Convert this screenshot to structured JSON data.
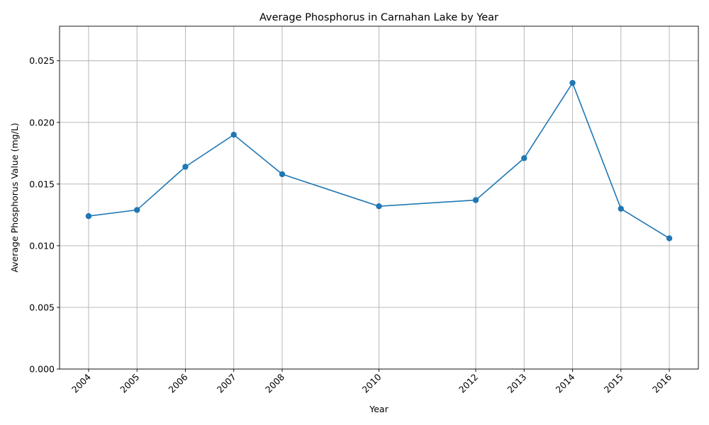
{
  "chart_data": {
    "type": "line",
    "title": "Average Phosphorus in Carnahan Lake by Year",
    "xlabel": "Year",
    "ylabel": "Average Phosphorus Value (mg/L)",
    "x": [
      2004,
      2005,
      2006,
      2007,
      2008,
      2010,
      2012,
      2013,
      2014,
      2015,
      2016
    ],
    "x_tick_labels": [
      "2004",
      "2005",
      "2006",
      "2007",
      "2008",
      "2010",
      "2012",
      "2013",
      "2014",
      "2015",
      "2016"
    ],
    "series": [
      {
        "values": [
          0.0124,
          0.0129,
          0.0164,
          0.019,
          0.0158,
          0.0132,
          0.0137,
          0.0171,
          0.0232,
          0.013,
          0.0106
        ],
        "color": "#1f77b4",
        "marker": "circle"
      }
    ],
    "xlim": [
      2003.4,
      2016.6
    ],
    "ylim": [
      0,
      0.0278
    ],
    "y_ticks": [
      0,
      0.005,
      0.01,
      0.015,
      0.02,
      0.025
    ],
    "y_tick_labels": [
      "0.000",
      "0.005",
      "0.010",
      "0.015",
      "0.020",
      "0.025"
    ],
    "grid": true,
    "x_tick_rotation": 45
  }
}
